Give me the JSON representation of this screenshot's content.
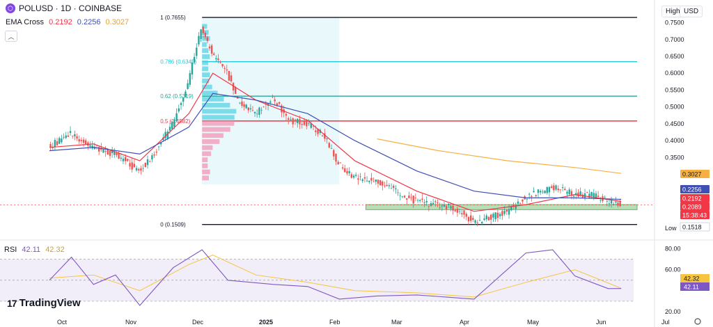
{
  "header": {
    "symbol_line": "POLUSD · 1D · COINBASE",
    "ema_label": "EMA Cross",
    "ema_values": [
      "0.2192",
      "0.2256",
      "0.3027"
    ],
    "high_button": "High",
    "currency_button": "USD",
    "collapse_icon": "chevron-up-icon"
  },
  "colors": {
    "up": "#26a69a",
    "down": "#ef5350",
    "ema_fast": "#f23645",
    "ema_mid": "#3f4fb4",
    "ema_slow": "#f5b041",
    "fib_top": "#131722",
    "fib_786": "#26c6da",
    "fib_62": "#26a69a",
    "fib_50": "#f23645",
    "rsi": "#7e57c2",
    "rsi_ma": "#f5c542"
  },
  "chart_data": [
    {
      "type": "line",
      "title": "POLUSD · 1D · COINBASE",
      "x_ticks": [
        "Oct",
        "Nov",
        "Dec",
        "2025",
        "Feb",
        "Mar",
        "Apr",
        "May",
        "Jun",
        "Jul"
      ],
      "y_ticks": [
        "0.7500",
        "0.7000",
        "0.6500",
        "0.6000",
        "0.5500",
        "0.5000",
        "0.4500",
        "0.4000",
        "0.3500"
      ],
      "ylim": [
        0.14,
        0.78
      ],
      "series": [
        {
          "name": "Price",
          "x": [
            "Sep 25",
            "Oct 5",
            "Oct 15",
            "Oct 25",
            "Nov 5",
            "Nov 12",
            "Nov 20",
            "Nov 27",
            "Dec 3",
            "Dec 8",
            "Dec 15",
            "Dec 20",
            "Dec 28",
            "Jan 5",
            "Jan 12",
            "Jan 20",
            "Jan 27",
            "Feb 3",
            "Feb 10",
            "Feb 20",
            "Mar 1",
            "Mar 10",
            "Mar 20",
            "Mar 28",
            "Apr 5",
            "Apr 12",
            "Apr 20",
            "Apr 28",
            "May 5",
            "May 12",
            "May 20",
            "May 28",
            "Jun 4",
            "Jun 10"
          ],
          "values": [
            0.38,
            0.42,
            0.38,
            0.36,
            0.31,
            0.36,
            0.45,
            0.57,
            0.73,
            0.66,
            0.6,
            0.52,
            0.48,
            0.53,
            0.46,
            0.45,
            0.42,
            0.33,
            0.29,
            0.28,
            0.25,
            0.22,
            0.21,
            0.2,
            0.16,
            0.17,
            0.19,
            0.23,
            0.25,
            0.26,
            0.24,
            0.24,
            0.22,
            0.21
          ]
        },
        {
          "name": "EMA 0.2192",
          "x": [
            "Sep 25",
            "Oct 15",
            "Nov 5",
            "Nov 27",
            "Dec 8",
            "Dec 28",
            "Jan 20",
            "Feb 10",
            "Mar 10",
            "Apr 5",
            "Apr 28",
            "May 20",
            "Jun 10"
          ],
          "values": [
            0.38,
            0.39,
            0.34,
            0.48,
            0.6,
            0.52,
            0.46,
            0.34,
            0.25,
            0.19,
            0.21,
            0.24,
            0.2192
          ]
        },
        {
          "name": "EMA 0.2256",
          "x": [
            "Sep 25",
            "Oct 15",
            "Nov 5",
            "Nov 27",
            "Dec 8",
            "Dec 28",
            "Jan 20",
            "Feb 10",
            "Mar 10",
            "Apr 5",
            "Apr 28",
            "May 20",
            "Jun 10"
          ],
          "values": [
            0.37,
            0.38,
            0.36,
            0.44,
            0.54,
            0.52,
            0.48,
            0.4,
            0.31,
            0.25,
            0.23,
            0.23,
            0.2256
          ]
        },
        {
          "name": "EMA 0.3027",
          "x": [
            "Feb 20",
            "Mar 20",
            "Apr 20",
            "May 20",
            "Jun 10"
          ],
          "values": [
            0.405,
            0.37,
            0.34,
            0.32,
            0.3027
          ]
        }
      ],
      "fib_levels": [
        {
          "label": "1 (0.7655)",
          "value": 0.7655
        },
        {
          "label": "0.786 (0.6340)",
          "value": 0.634
        },
        {
          "label": "0.62 (0.5319)",
          "value": 0.5319
        },
        {
          "label": "0.5 (0.4582)",
          "value": 0.4582
        },
        {
          "label": "0 (0.1509)",
          "value": 0.1509
        }
      ],
      "support_zone": [
        0.195,
        0.21
      ],
      "price_labels": [
        {
          "text": "0.3027",
          "kind": "ema_slow"
        },
        {
          "text": "0.2256",
          "kind": "ema_mid"
        },
        {
          "text": "0.2192",
          "kind": "ema_fast"
        },
        {
          "text": "0.2089",
          "kind": "last"
        },
        {
          "text": "15:38:43",
          "kind": "countdown"
        },
        {
          "text": "0.1518",
          "kind": "low"
        }
      ],
      "high_label": "High",
      "low_label": "Low"
    },
    {
      "type": "line",
      "title": "RSI",
      "values_shown": [
        "42.11",
        "42.32"
      ],
      "y_ticks": [
        "80.00",
        "60.00",
        "20.00"
      ],
      "ylim": [
        20,
        85
      ],
      "band": [
        30,
        70
      ],
      "series": [
        {
          "name": "RSI",
          "x": [
            "Sep 25",
            "Oct 5",
            "Oct 15",
            "Oct 25",
            "Nov 5",
            "Nov 20",
            "Dec 3",
            "Dec 15",
            "Jan 5",
            "Jan 20",
            "Feb 3",
            "Feb 20",
            "Mar 10",
            "Apr 5",
            "Apr 28",
            "May 10",
            "May 20",
            "Jun 4",
            "Jun 10"
          ],
          "values": [
            50,
            72,
            46,
            55,
            26,
            62,
            79,
            50,
            46,
            44,
            32,
            35,
            36,
            32,
            76,
            79,
            54,
            42,
            42.11
          ]
        },
        {
          "name": "MA",
          "x": [
            "Sep 25",
            "Oct 15",
            "Nov 5",
            "Nov 27",
            "Dec 8",
            "Dec 28",
            "Jan 20",
            "Feb 10",
            "Mar 10",
            "Apr 5",
            "Apr 28",
            "May 20",
            "Jun 10"
          ],
          "values": [
            52,
            55,
            40,
            65,
            74,
            55,
            48,
            40,
            38,
            34,
            48,
            60,
            42.32
          ]
        }
      ],
      "side_labels": [
        "42.32",
        "42.11"
      ]
    }
  ],
  "footer": {
    "brand": "TradingView",
    "brand_mark": "17"
  }
}
